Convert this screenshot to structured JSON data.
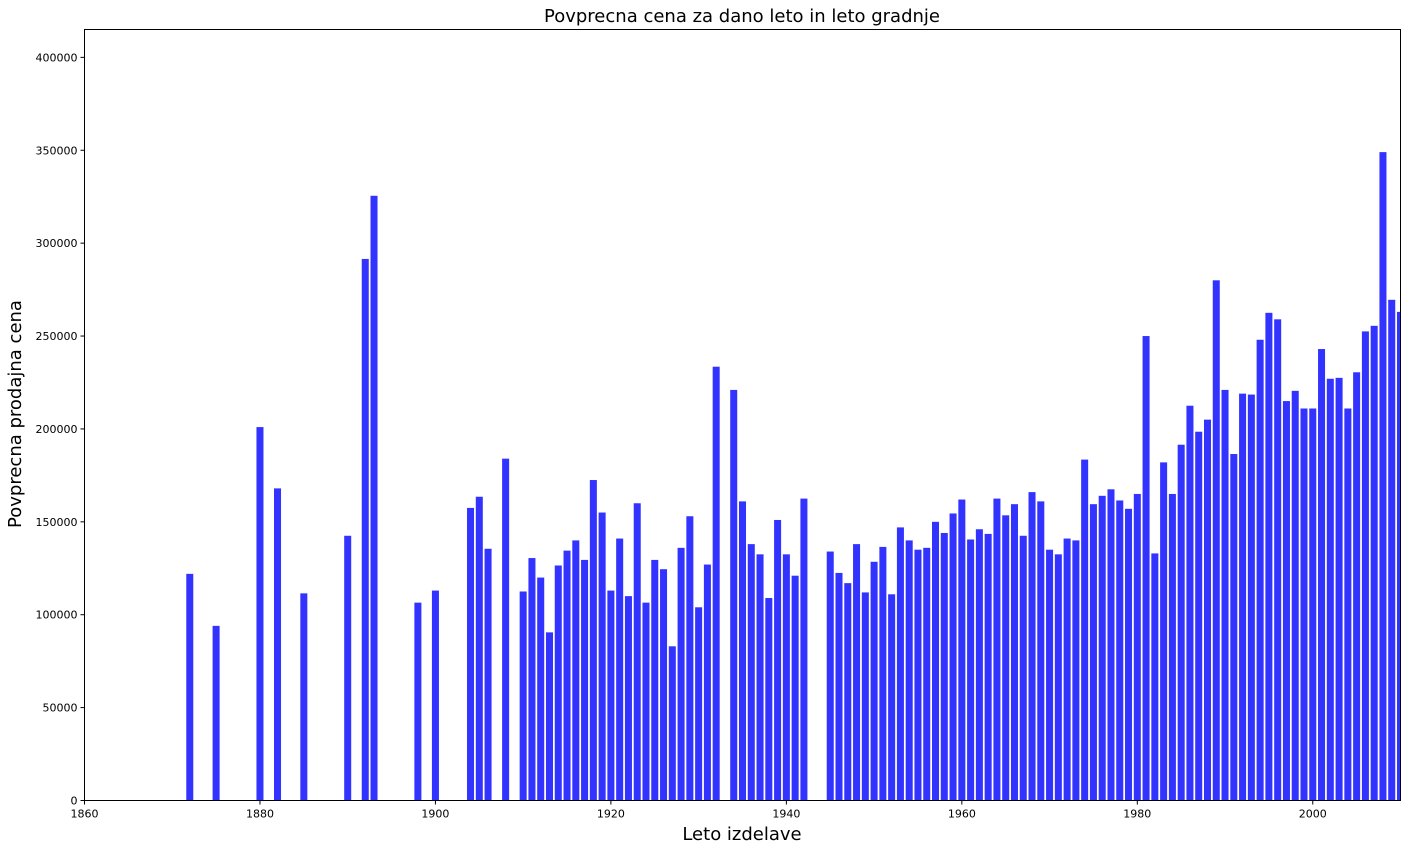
{
  "chart_data": {
    "type": "bar",
    "title": "Povprecna cena za dano leto in leto gradnje",
    "xlabel": "Leto izdelave",
    "ylabel": "Povprecna prodajna cena",
    "xlim": [
      1860,
      2010
    ],
    "ylim": [
      0,
      415000
    ],
    "xticks": [
      "1860",
      "1880",
      "1900",
      "1920",
      "1940",
      "1960",
      "1980",
      "2000"
    ],
    "yticks": [
      "0",
      "50000",
      "100000",
      "150000",
      "200000",
      "250000",
      "300000",
      "350000",
      "400000"
    ],
    "grid": false,
    "bar_color": "#3333FF",
    "x": [
      1872,
      1875,
      1880,
      1882,
      1885,
      1890,
      1892,
      1893,
      1898,
      1900,
      1904,
      1905,
      1906,
      1908,
      1910,
      1911,
      1912,
      1913,
      1914,
      1915,
      1916,
      1917,
      1918,
      1919,
      1920,
      1921,
      1922,
      1923,
      1924,
      1925,
      1926,
      1927,
      1928,
      1929,
      1930,
      1931,
      1932,
      1934,
      1935,
      1936,
      1937,
      1938,
      1939,
      1940,
      1941,
      1942,
      1945,
      1946,
      1947,
      1948,
      1949,
      1950,
      1951,
      1952,
      1953,
      1954,
      1955,
      1956,
      1957,
      1958,
      1959,
      1960,
      1961,
      1962,
      1963,
      1964,
      1965,
      1966,
      1967,
      1968,
      1969,
      1970,
      1971,
      1972,
      1973,
      1974,
      1975,
      1976,
      1977,
      1978,
      1979,
      1980,
      1981,
      1982,
      1983,
      1984,
      1985,
      1986,
      1987,
      1988,
      1989,
      1990,
      1991,
      1992,
      1993,
      1994,
      1995,
      1996,
      1997,
      1998,
      1999,
      2000,
      2001,
      2002,
      2003,
      2004,
      2005,
      2006,
      2007,
      2008,
      2009,
      2010
    ],
    "values": [
      122000,
      94000,
      201000,
      168000,
      111500,
      142500,
      291500,
      325500,
      106500,
      113000,
      157500,
      163500,
      135500,
      184000,
      112500,
      130500,
      120000,
      90500,
      126500,
      134500,
      140000,
      129500,
      172500,
      155000,
      113000,
      141000,
      110000,
      160000,
      106500,
      129500,
      124500,
      83000,
      136000,
      153000,
      104000,
      127000,
      233500,
      221000,
      161000,
      138000,
      132500,
      109000,
      151000,
      132500,
      121000,
      162500,
      134000,
      122500,
      117000,
      138000,
      112000,
      128500,
      136500,
      111000,
      147000,
      140000,
      135000,
      136000,
      150000,
      144000,
      154500,
      162000,
      140500,
      146000,
      143500,
      162500,
      153500,
      159500,
      142500,
      166000,
      161000,
      135000,
      132500,
      141000,
      140000,
      183500,
      159500,
      164000,
      167500,
      161500,
      157000,
      165000,
      250000,
      133000,
      182000,
      165000,
      191500,
      212500,
      198500,
      205000,
      280000,
      221000,
      186500,
      219000,
      218500,
      248000,
      262500,
      259000,
      215000,
      220500,
      211000,
      211000,
      243000,
      227000,
      227500,
      211000,
      230500,
      252500,
      255500,
      349000,
      269500,
      263000
    ]
  }
}
